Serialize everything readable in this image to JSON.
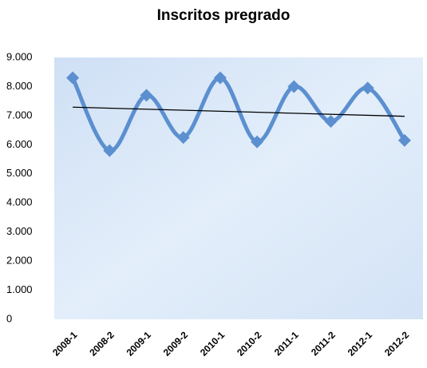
{
  "chart_data": {
    "type": "line",
    "title": "Inscritos pregrado",
    "categories": [
      "2008-1",
      "2008-2",
      "2009-1",
      "2009-2",
      "2010-1",
      "2010-2",
      "2011-1",
      "2011-2",
      "2012-1",
      "2012-2"
    ],
    "series": [
      {
        "color": "#5b8fd0",
        "values": [
          8300,
          5800,
          7700,
          6250,
          8300,
          6100,
          8000,
          6800,
          7950,
          6150
        ]
      }
    ],
    "ylim": [
      0,
      9000
    ],
    "yticks": [
      0,
      {
        "value": 1000,
        "label": "1.000"
      },
      {
        "value": 2000,
        "label": "2.000"
      },
      {
        "value": 3000,
        "label": "3.000"
      },
      {
        "value": 4000,
        "label": "4.000"
      },
      {
        "value": 5000,
        "label": "5.000"
      },
      {
        "value": 6000,
        "label": "6.000"
      },
      {
        "value": 7000,
        "label": "7.000"
      },
      {
        "value": 8000,
        "label": "8.000"
      },
      {
        "value": 9000,
        "label": "9.000"
      }
    ],
    "smooth": true,
    "trendline": true,
    "trendline_color": "#000000",
    "marker": "diamond"
  }
}
